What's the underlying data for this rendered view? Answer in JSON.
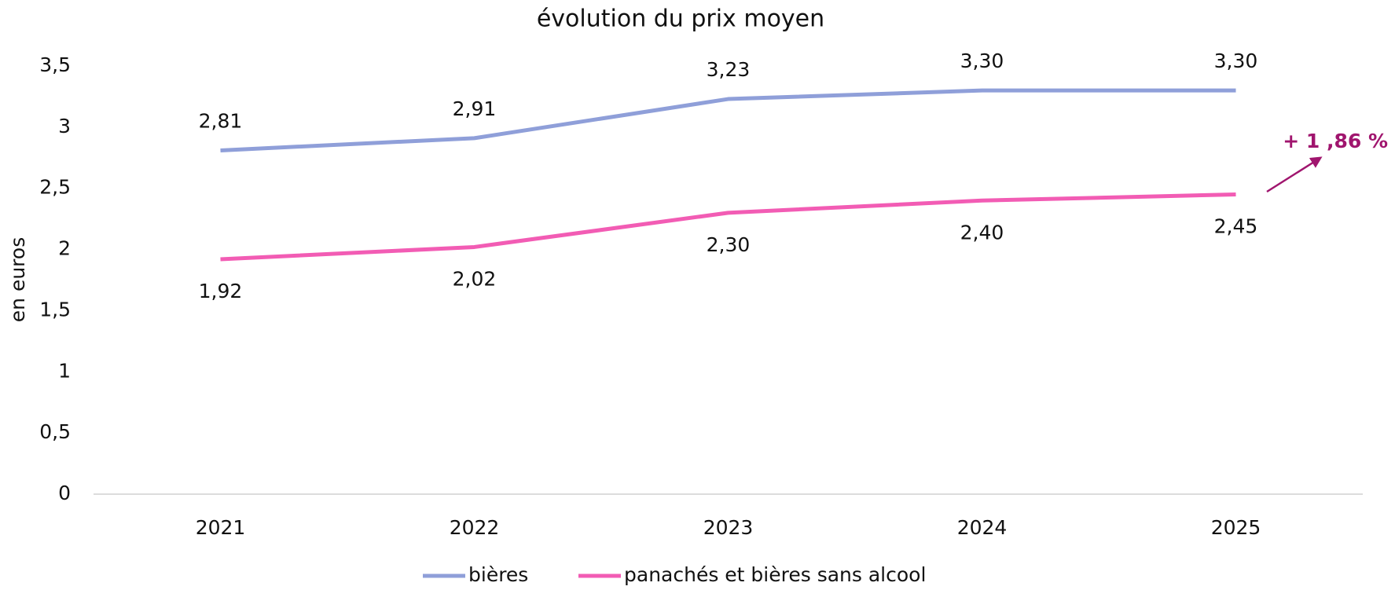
{
  "chart_data": {
    "type": "line",
    "title": "évolution du prix moyen",
    "y_label": "en euros",
    "categories": [
      "2021",
      "2022",
      "2023",
      "2024",
      "2025"
    ],
    "series": [
      {
        "name": "bières",
        "color": "#8f9fd9",
        "values": [
          2.81,
          2.91,
          3.23,
          3.3,
          3.3
        ],
        "value_labels": [
          "2,81",
          "2,91",
          "3,23",
          "3,30",
          "3,30"
        ]
      },
      {
        "name": "panachés et bières sans alcool",
        "color": "#f25cb4",
        "values": [
          1.92,
          2.02,
          2.3,
          2.4,
          2.45
        ],
        "value_labels": [
          "1,92",
          "2,02",
          "2,30",
          "2,40",
          "2,45"
        ]
      }
    ],
    "ylim": [
      0,
      3.5
    ],
    "yticks": [
      0,
      {
        "value": 0.5,
        "label": "0,5"
      },
      1,
      {
        "value": 1.5,
        "label": "1,5"
      },
      2,
      {
        "value": 2.5,
        "label": "2,5"
      },
      3,
      {
        "value": 3.5,
        "label": "3,5"
      }
    ],
    "grid": false,
    "legend": "bottom",
    "annotation": {
      "text": "+ 1 ,86 %",
      "color": "#a0156e"
    }
  }
}
